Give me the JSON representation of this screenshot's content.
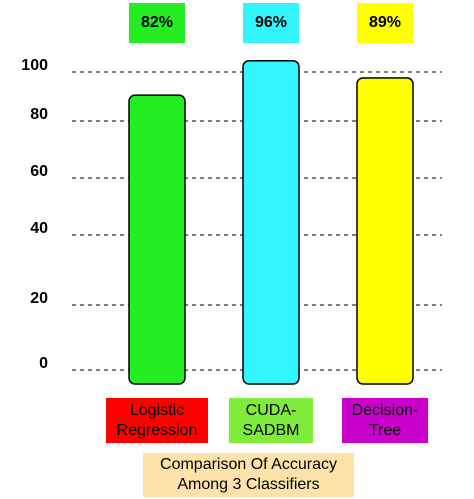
{
  "chart_data": {
    "type": "bar",
    "categories": [
      "Logistic\nRegression",
      "CUDA-\nSADBM",
      "Decision-\nTree"
    ],
    "values": [
      82,
      96,
      89
    ],
    "value_labels": [
      "82%",
      "96%",
      "89%"
    ],
    "bar_colors": [
      "#22ee22",
      "#33f5ff",
      "#ffff00"
    ],
    "label_colors": [
      "#ff0000",
      "#7fec3c",
      "#cc00cc"
    ],
    "yticks": [
      0,
      20,
      40,
      60,
      80,
      100
    ],
    "ylim": [
      0,
      100
    ],
    "grid": "dashed horizontal",
    "caption": "Comparison   Of Accuracy\nAmong 3 Classifiers",
    "caption_color": "#fde3a9"
  }
}
